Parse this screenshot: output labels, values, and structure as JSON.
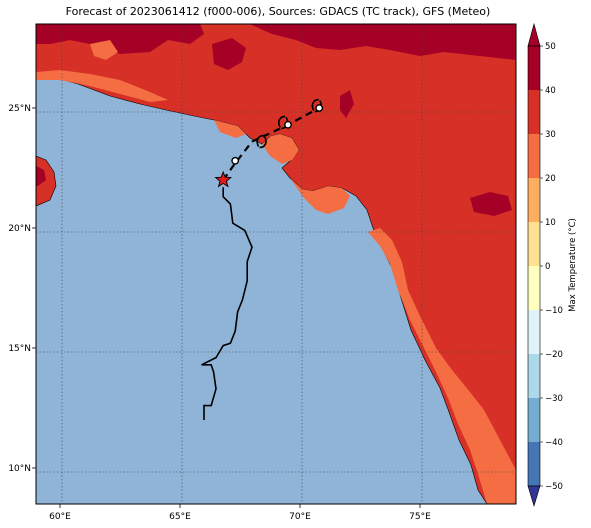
{
  "title": "Forecast of 2023061412 (f000-006), Sources: GDACS (TC track), GFS (Meteo)",
  "map": {
    "lon_range": [
      59,
      79
    ],
    "lat_range": [
      8.5,
      28.5
    ],
    "lon_ticks": [
      60,
      65,
      70,
      75
    ],
    "lat_ticks": [
      10,
      15,
      20,
      25
    ],
    "lon_tick_labels": [
      "60°E",
      "65°E",
      "70°E",
      "75°E"
    ],
    "lat_tick_labels": [
      "10°N",
      "15°N",
      "20°N",
      "25°N"
    ],
    "ocean_color": "#8fb4d8",
    "gridlines": true
  },
  "colorbar": {
    "label": "Max Temperature (°C)",
    "ticks": [
      "50",
      "40",
      "30",
      "20",
      "10",
      "0",
      "−10",
      "−20",
      "−30",
      "−40",
      "−50"
    ],
    "colors": [
      "#a50026",
      "#d73027",
      "#f46d43",
      "#fdae61",
      "#fee090",
      "#ffffbf",
      "#e0f3f8",
      "#abd9e9",
      "#74add1",
      "#4575b4",
      "#313695"
    ]
  },
  "track": {
    "past_track": [
      [
        66.0,
        12.0
      ],
      [
        66.0,
        12.6
      ],
      [
        66.3,
        12.6
      ],
      [
        66.5,
        13.3
      ],
      [
        66.4,
        14.0
      ],
      [
        66.3,
        14.3
      ],
      [
        65.9,
        14.3
      ],
      [
        66.5,
        14.6
      ],
      [
        66.8,
        15.1
      ],
      [
        67.1,
        15.2
      ],
      [
        67.3,
        15.7
      ],
      [
        67.4,
        16.5
      ],
      [
        67.6,
        17.0
      ],
      [
        67.8,
        17.8
      ],
      [
        67.8,
        18.6
      ],
      [
        68.0,
        19.2
      ],
      [
        67.7,
        19.9
      ],
      [
        67.2,
        20.2
      ],
      [
        67.1,
        21.0
      ],
      [
        66.8,
        21.3
      ],
      [
        66.8,
        21.7
      ]
    ],
    "current_position": [
      66.8,
      22.0
    ],
    "forecast_track": [
      [
        66.8,
        22.0
      ],
      [
        67.3,
        22.7
      ],
      [
        68.0,
        23.6
      ],
      [
        69.5,
        24.3
      ],
      [
        70.8,
        25.0
      ]
    ],
    "forecast_points": [
      [
        67.3,
        22.8
      ],
      [
        69.5,
        24.3
      ],
      [
        70.8,
        25.0
      ]
    ],
    "cyclone_symbols": [
      [
        68.4,
        23.6
      ],
      [
        69.3,
        24.4
      ],
      [
        70.7,
        25.1
      ]
    ],
    "current_marker_color": "#e31a1c"
  }
}
